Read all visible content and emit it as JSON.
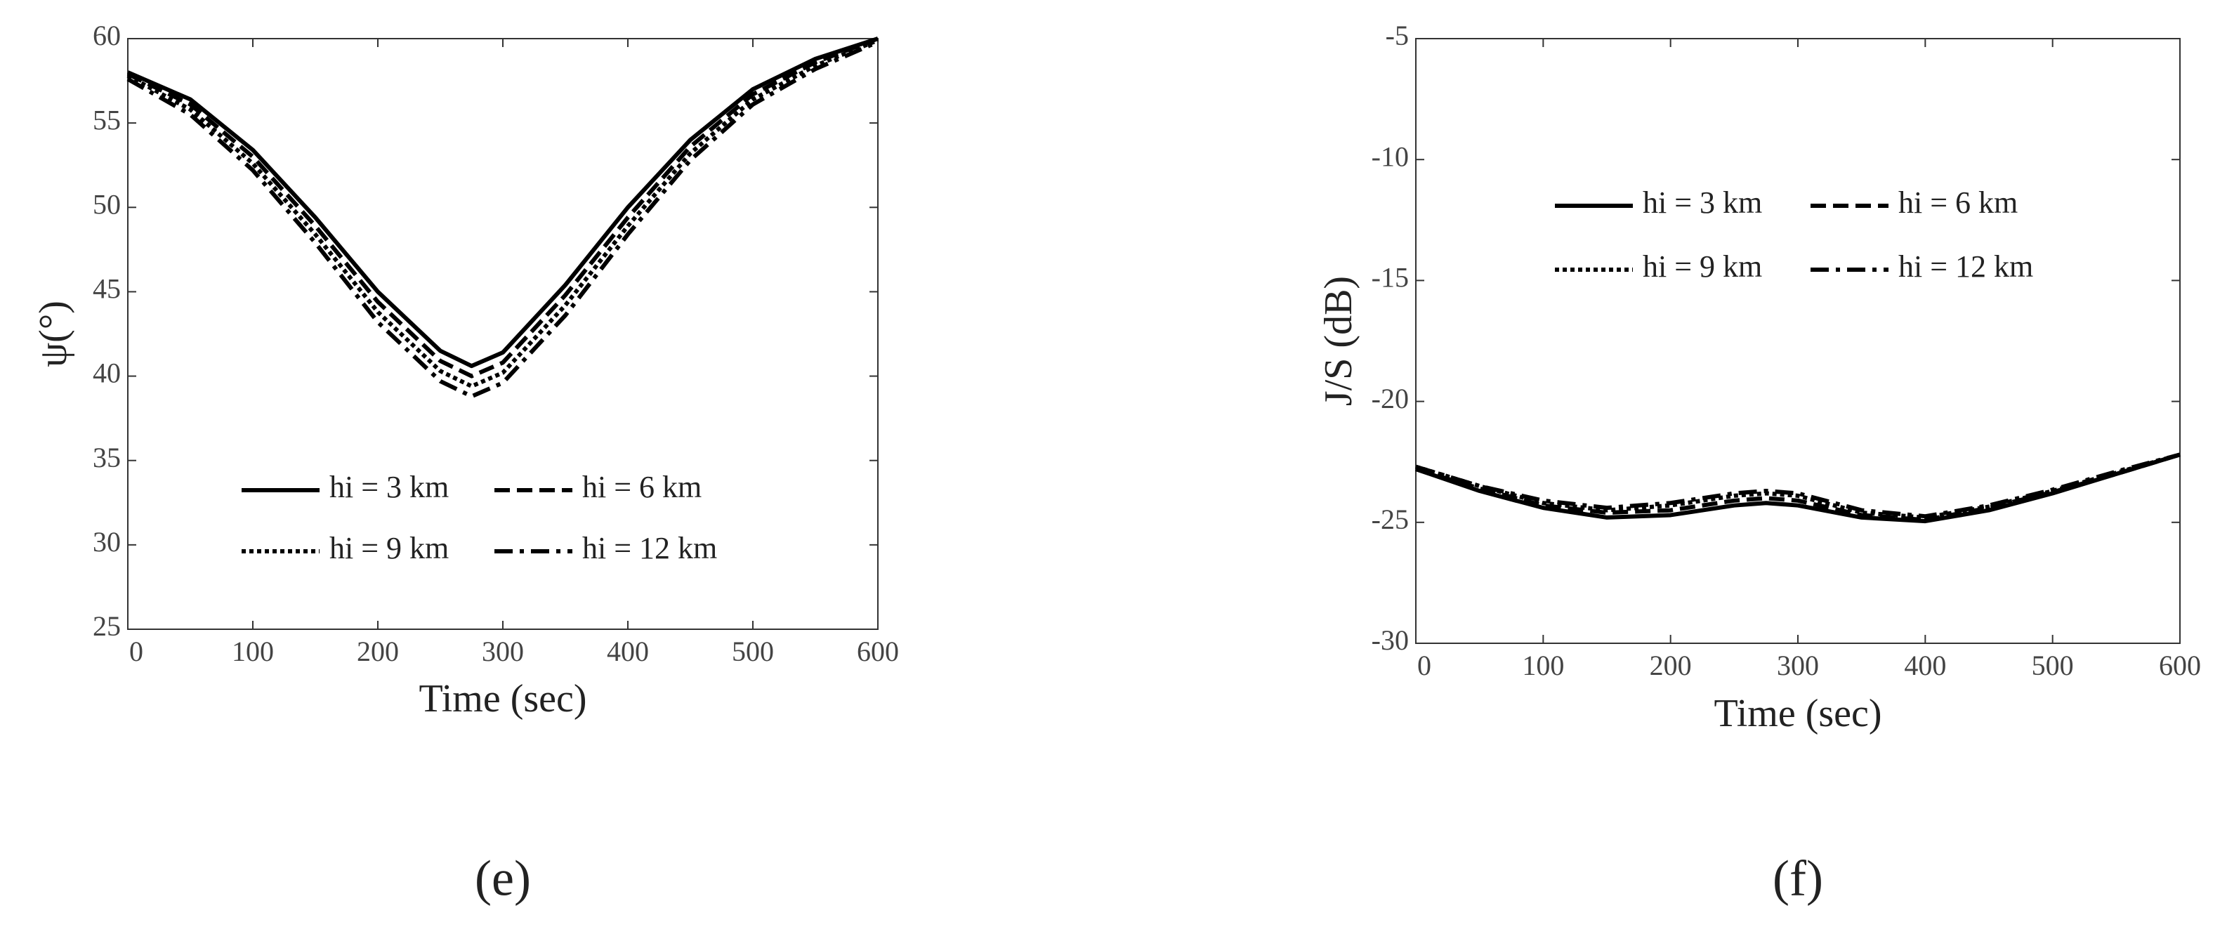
{
  "chart_data": [
    {
      "type": "line",
      "caption": "(e)",
      "xlabel": "Time (sec)",
      "ylabel": "ψ(°)",
      "x": [
        0,
        50,
        100,
        150,
        200,
        250,
        275,
        300,
        350,
        400,
        450,
        500,
        550,
        600
      ],
      "series": [
        {
          "name": "hi = 3 km",
          "color": "#000000",
          "style": "solid",
          "values": [
            58,
            56.4,
            53.4,
            49.4,
            45,
            41.5,
            40.6,
            41.4,
            45.4,
            50,
            54,
            57,
            58.8,
            60
          ]
        },
        {
          "name": "hi = 6 km",
          "color": "#000000",
          "style": "dashed",
          "values": [
            57.9,
            56.1,
            53,
            48.9,
            44.4,
            40.9,
            40,
            40.8,
            44.8,
            49.4,
            53.6,
            56.7,
            58.6,
            60
          ]
        },
        {
          "name": "hi = 9 km",
          "color": "#000000",
          "style": "dotted",
          "values": [
            57.8,
            55.8,
            52.6,
            48.4,
            43.8,
            40.3,
            39.4,
            40.2,
            44.2,
            48.9,
            53.2,
            56.4,
            58.4,
            59.9
          ]
        },
        {
          "name": "hi = 12 km",
          "color": "#000000",
          "style": "dashdot",
          "values": [
            57.6,
            55.5,
            52.2,
            47.9,
            43.2,
            39.7,
            38.8,
            39.6,
            43.6,
            48.4,
            52.8,
            56.1,
            58.2,
            59.8
          ]
        }
      ],
      "xlim": [
        0,
        600
      ],
      "xticks": [
        0,
        100,
        200,
        300,
        400,
        500,
        600
      ],
      "ylim": [
        25,
        60
      ],
      "yticks": [
        25,
        30,
        35,
        40,
        45,
        50,
        55,
        60
      ]
    },
    {
      "type": "line",
      "caption": "(f)",
      "xlabel": "Time (sec)",
      "ylabel": "J/S (dB)",
      "x": [
        0,
        50,
        100,
        150,
        200,
        250,
        275,
        300,
        350,
        400,
        450,
        500,
        550,
        600
      ],
      "series": [
        {
          "name": "hi = 3 km",
          "color": "#000000",
          "style": "solid",
          "values": [
            -22.8,
            -23.7,
            -24.4,
            -24.8,
            -24.7,
            -24.3,
            -24.2,
            -24.3,
            -24.8,
            -24.95,
            -24.5,
            -23.8,
            -23,
            -22.2
          ]
        },
        {
          "name": "hi = 6 km",
          "color": "#000000",
          "style": "dashed",
          "values": [
            -22.8,
            -23.6,
            -24.3,
            -24.6,
            -24.5,
            -24.1,
            -24,
            -24.1,
            -24.7,
            -24.9,
            -24.4,
            -23.75,
            -23,
            -22.2
          ]
        },
        {
          "name": "hi = 9 km",
          "color": "#000000",
          "style": "dotted",
          "values": [
            -22.7,
            -23.5,
            -24.2,
            -24.5,
            -24.3,
            -23.9,
            -23.8,
            -23.9,
            -24.6,
            -24.8,
            -24.35,
            -23.7,
            -22.95,
            -22.2
          ]
        },
        {
          "name": "hi = 12 km",
          "color": "#000000",
          "style": "dashdot",
          "values": [
            -22.7,
            -23.5,
            -24.1,
            -24.4,
            -24.2,
            -23.8,
            -23.7,
            -23.8,
            -24.5,
            -24.75,
            -24.3,
            -23.65,
            -22.9,
            -22.2
          ]
        }
      ],
      "xlim": [
        0,
        600
      ],
      "xticks": [
        0,
        100,
        200,
        300,
        400,
        500,
        600
      ],
      "ylim": [
        -30,
        -5
      ],
      "yticks": [
        -30,
        -25,
        -20,
        -15,
        -10,
        -5
      ]
    }
  ]
}
